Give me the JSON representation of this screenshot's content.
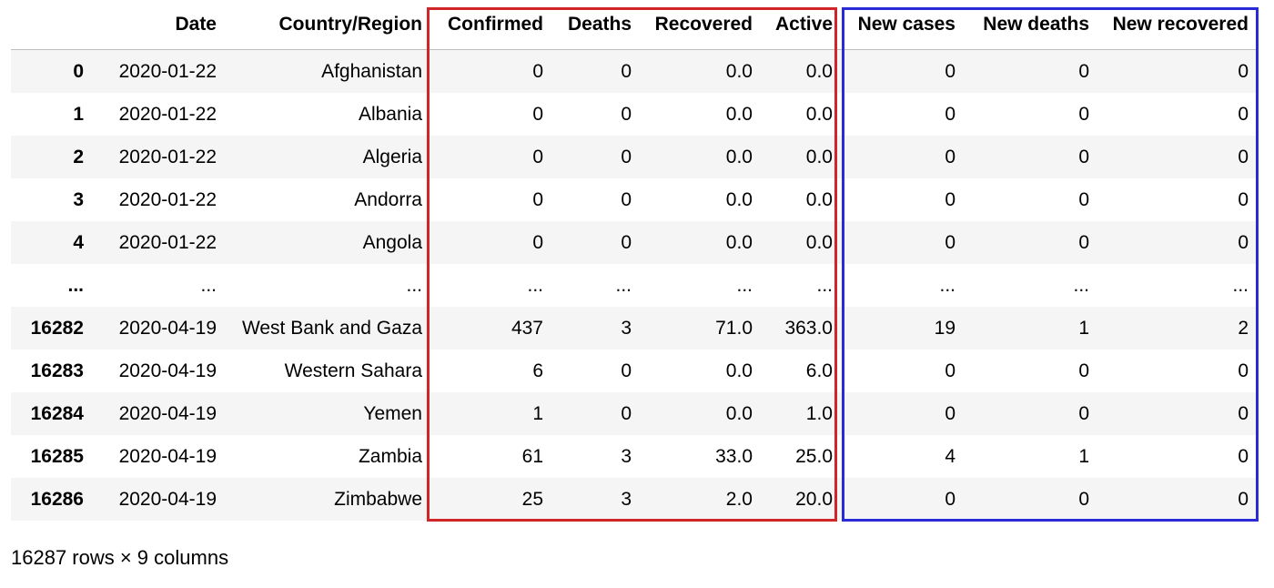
{
  "dataframe": {
    "index_header": "",
    "columns": [
      "Date",
      "Country/Region",
      "Confirmed",
      "Deaths",
      "Recovered",
      "Active",
      "New cases",
      "New deaths",
      "New recovered"
    ],
    "rows": [
      {
        "index": "0",
        "cells": [
          "2020-01-22",
          "Afghanistan",
          "0",
          "0",
          "0.0",
          "0.0",
          "0",
          "0",
          "0"
        ]
      },
      {
        "index": "1",
        "cells": [
          "2020-01-22",
          "Albania",
          "0",
          "0",
          "0.0",
          "0.0",
          "0",
          "0",
          "0"
        ]
      },
      {
        "index": "2",
        "cells": [
          "2020-01-22",
          "Algeria",
          "0",
          "0",
          "0.0",
          "0.0",
          "0",
          "0",
          "0"
        ]
      },
      {
        "index": "3",
        "cells": [
          "2020-01-22",
          "Andorra",
          "0",
          "0",
          "0.0",
          "0.0",
          "0",
          "0",
          "0"
        ]
      },
      {
        "index": "4",
        "cells": [
          "2020-01-22",
          "Angola",
          "0",
          "0",
          "0.0",
          "0.0",
          "0",
          "0",
          "0"
        ]
      },
      {
        "index": "...",
        "cells": [
          "...",
          "...",
          "...",
          "...",
          "...",
          "...",
          "...",
          "...",
          "..."
        ]
      },
      {
        "index": "16282",
        "cells": [
          "2020-04-19",
          "West Bank and Gaza",
          "437",
          "3",
          "71.0",
          "363.0",
          "19",
          "1",
          "2"
        ]
      },
      {
        "index": "16283",
        "cells": [
          "2020-04-19",
          "Western Sahara",
          "6",
          "0",
          "0.0",
          "6.0",
          "0",
          "0",
          "0"
        ]
      },
      {
        "index": "16284",
        "cells": [
          "2020-04-19",
          "Yemen",
          "1",
          "0",
          "0.0",
          "1.0",
          "0",
          "0",
          "0"
        ]
      },
      {
        "index": "16285",
        "cells": [
          "2020-04-19",
          "Zambia",
          "61",
          "3",
          "33.0",
          "25.0",
          "4",
          "1",
          "0"
        ]
      },
      {
        "index": "16286",
        "cells": [
          "2020-04-19",
          "Zimbabwe",
          "25",
          "3",
          "2.0",
          "20.0",
          "0",
          "0",
          "0"
        ]
      }
    ],
    "shape_text": "16287 rows × 9 columns"
  },
  "highlights": {
    "cumulative_box_color": "#d0262a",
    "daily_box_color": "#2a2ad6"
  }
}
